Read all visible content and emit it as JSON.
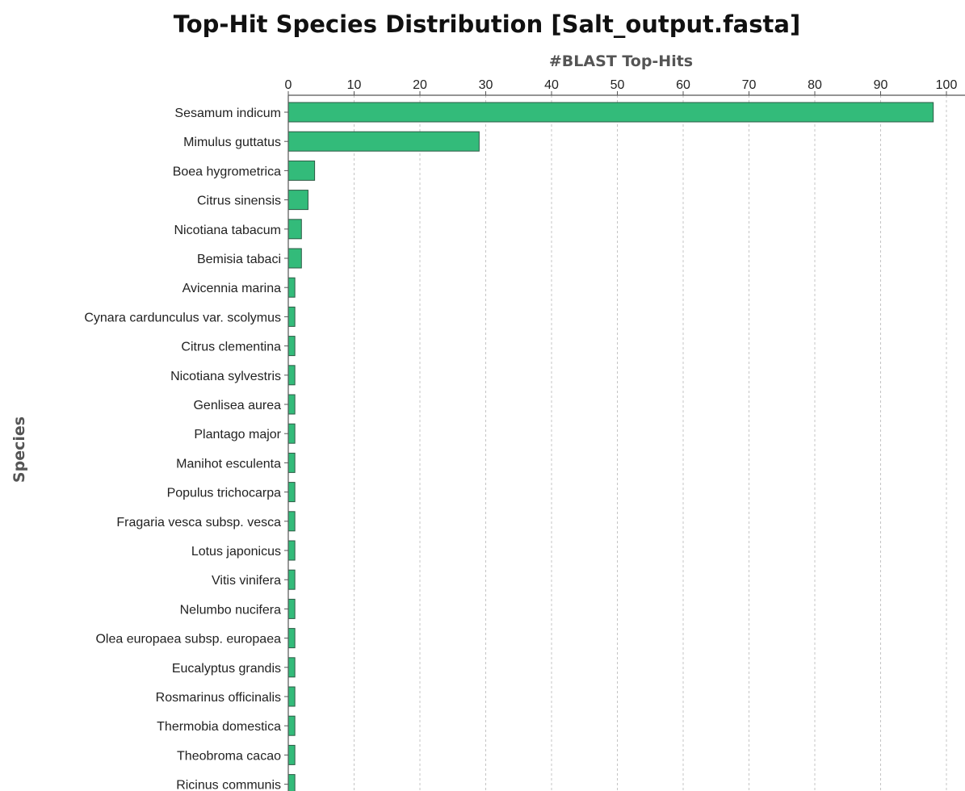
{
  "chart_data": {
    "type": "bar",
    "orientation": "horizontal",
    "title": "Top-Hit Species Distribution [Salt_output.fasta]",
    "xlabel": "#BLAST Top-Hits",
    "ylabel": "Species",
    "xlim": [
      0,
      100
    ],
    "xticks": [
      0,
      10,
      20,
      30,
      40,
      50,
      60,
      70,
      80,
      90,
      100
    ],
    "grid": "vertical dashed",
    "bar_color": "#33bb7a",
    "categories": [
      "Sesamum indicum",
      "Mimulus guttatus",
      "Boea hygrometrica",
      "Citrus sinensis",
      "Nicotiana tabacum",
      "Bemisia tabaci",
      "Avicennia marina",
      "Cynara cardunculus var. scolymus",
      "Citrus clementina",
      "Nicotiana sylvestris",
      "Genlisea aurea",
      "Plantago major",
      "Manihot esculenta",
      "Populus trichocarpa",
      "Fragaria vesca subsp. vesca",
      "Lotus japonicus",
      "Vitis vinifera",
      "Nelumbo nucifera",
      "Olea europaea subsp. europaea",
      "Eucalyptus grandis",
      "Rosmarinus officinalis",
      "Thermobia domestica",
      "Theobroma cacao",
      "Ricinus communis"
    ],
    "values": [
      98,
      29,
      4,
      3,
      2,
      2,
      1,
      1,
      1,
      1,
      1,
      1,
      1,
      1,
      1,
      1,
      1,
      1,
      1,
      1,
      1,
      1,
      1,
      1
    ]
  }
}
